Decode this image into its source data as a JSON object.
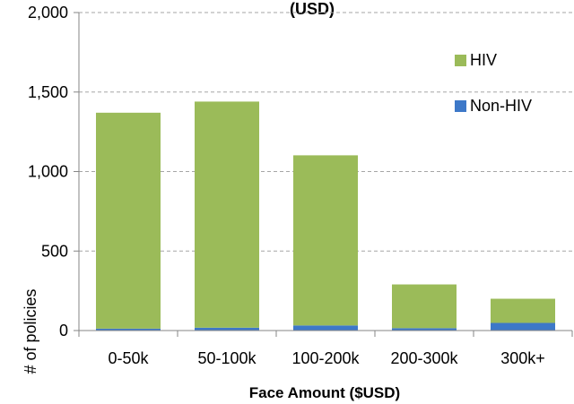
{
  "chart_data": {
    "type": "bar",
    "stacked": true,
    "title": "(USD)",
    "xlabel": "Face Amount ($USD)",
    "ylabel": "# of policies",
    "categories": [
      "0-50k",
      "50-100k",
      "100-200k",
      "200-300k",
      "300k+"
    ],
    "series": [
      {
        "name": "Non-HIV",
        "color": "#3d78c8",
        "values": [
          12,
          18,
          32,
          15,
          48
        ]
      },
      {
        "name": "HIV",
        "color": "#9bbb59",
        "values": [
          1358,
          1422,
          1070,
          275,
          152
        ]
      }
    ],
    "ylim": [
      0,
      2000
    ],
    "yticks": [
      "0",
      "500",
      "1,000",
      "1,500",
      "2,000"
    ],
    "ytick_values": [
      0,
      500,
      1000,
      1500,
      2000
    ],
    "grid": true,
    "legend": {
      "position": "right",
      "order": [
        "HIV",
        "Non-HIV"
      ]
    }
  }
}
